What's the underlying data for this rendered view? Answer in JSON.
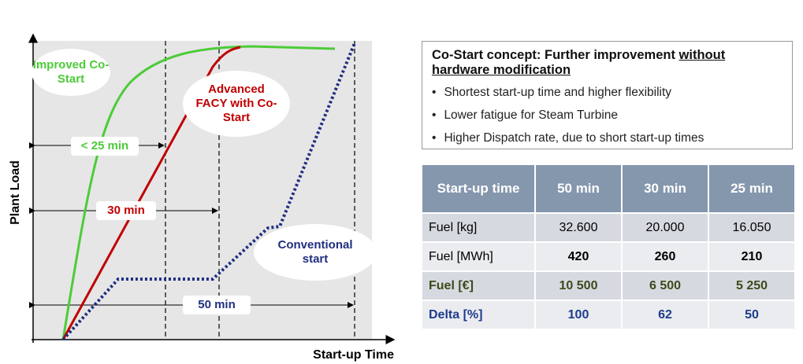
{
  "diagram": {
    "y_axis_label": "Plant Load",
    "x_axis_label": "Start-up Time",
    "curves": [
      {
        "label": "Improved Co-Start"
      },
      {
        "label": "Advanced FACY with Co-Start"
      },
      {
        "label": "Conventional start"
      }
    ],
    "intervals": [
      "< 25 min",
      "30 min",
      "50 min"
    ]
  },
  "concept": {
    "title_lead": "Co-Start concept: Further improvement ",
    "title_underlined": "without hardware modification",
    "bullets": [
      "Shortest start-up time and higher flexibility",
      "Lower fatigue for Steam Turbine",
      "Higher Dispatch rate, due to short start-up times"
    ]
  },
  "table": {
    "header": [
      "Start-up time",
      "50 min",
      "30 min",
      "25 min"
    ],
    "rows": [
      [
        "Fuel [kg]",
        "32.600",
        "20.000",
        "16.050"
      ],
      [
        "Fuel [MWh]",
        "420",
        "260",
        "210"
      ],
      [
        "Fuel [€]",
        "10 500",
        "6 500",
        "5 250"
      ],
      [
        "Delta [%]",
        "100",
        "62",
        "50"
      ]
    ]
  }
}
